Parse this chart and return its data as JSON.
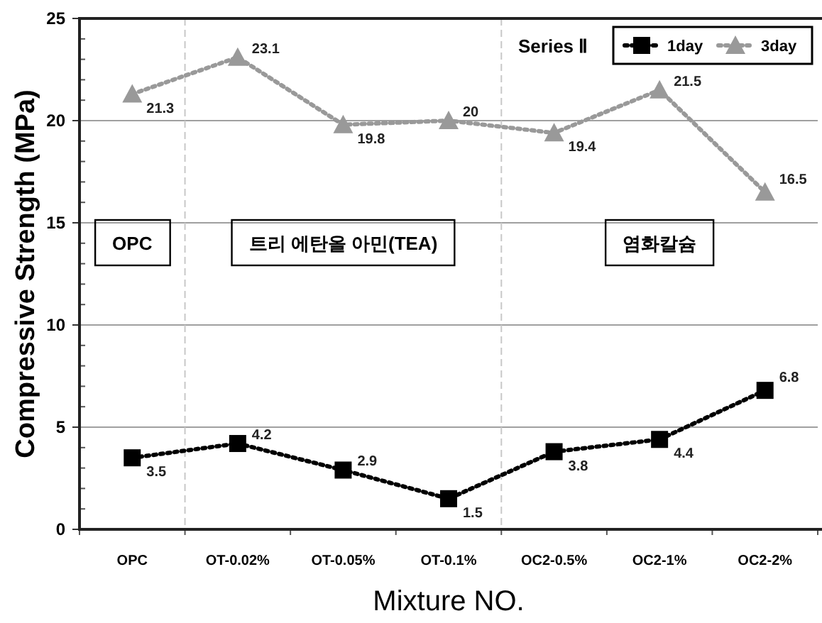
{
  "chart_data": {
    "type": "line",
    "xlabel": "Mixture NO.",
    "ylabel": "Compressive Strength (MPa)",
    "categories": [
      "OPC",
      "OT-0.02%",
      "OT-0.05%",
      "OT-0.1%",
      "OC2-0.5%",
      "OC2-1%",
      "OC2-2%"
    ],
    "series": [
      {
        "name": "1day",
        "color": "#000000",
        "marker": "square",
        "values": [
          3.5,
          4.2,
          2.9,
          1.5,
          3.8,
          4.4,
          6.8
        ]
      },
      {
        "name": "3day",
        "color": "#999999",
        "marker": "triangle",
        "values": [
          21.3,
          23.1,
          19.8,
          20,
          19.4,
          21.5,
          16.5
        ]
      }
    ],
    "ylim": [
      0,
      25
    ],
    "yticks": [
      0,
      {
        "value": 1,
        "label": null
      },
      {
        "value": 2,
        "label": null
      },
      {
        "value": 3,
        "label": null
      },
      {
        "value": 4,
        "label": null
      },
      5,
      {
        "value": 6,
        "label": null
      },
      {
        "value": 7,
        "label": null
      },
      {
        "value": 8,
        "label": null
      },
      {
        "value": 9,
        "label": null
      },
      10,
      {
        "value": 11,
        "label": null
      },
      {
        "value": 12,
        "label": null
      },
      {
        "value": 13,
        "label": null
      },
      {
        "value": 14,
        "label": null
      },
      15,
      {
        "value": 16,
        "label": null
      },
      {
        "value": 17,
        "label": null
      },
      {
        "value": 18,
        "label": null
      },
      {
        "value": 19,
        "label": null
      },
      20,
      {
        "value": 21,
        "label": null
      },
      {
        "value": 22,
        "label": null
      },
      {
        "value": 23,
        "label": null
      },
      {
        "value": 24,
        "label": null
      },
      25
    ],
    "annotations": [
      "Series Ⅱ",
      "OPC",
      "트리 에탄올 아민(TEA)",
      "염화칼슘"
    ],
    "data_labels": true,
    "grid": "y",
    "legend": "top right",
    "line_style": "dotted"
  }
}
